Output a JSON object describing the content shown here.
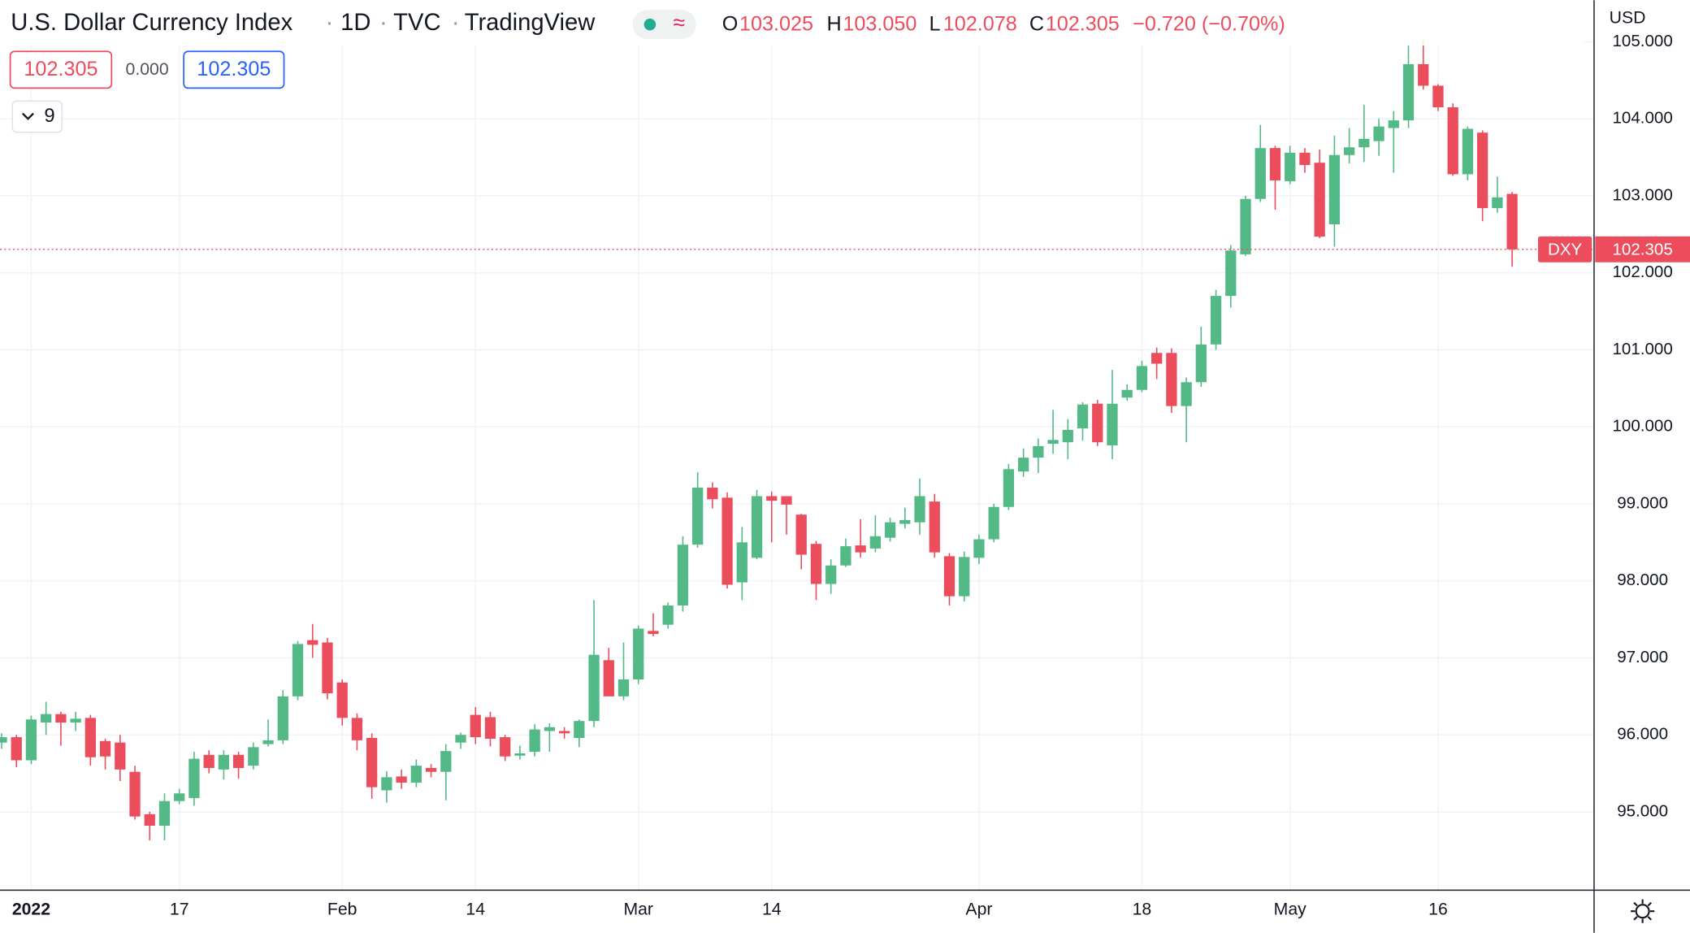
{
  "chart_data": {
    "type": "candlestick",
    "title": "U.S. Dollar Currency Index",
    "interval": "1D",
    "exchange": "TVC",
    "source": "TradingView",
    "symbol": "DXY",
    "currency": "USD",
    "ohlc_prefixes": [
      "O",
      "H",
      "L",
      "C"
    ],
    "last_value_labels": {
      "open": "103.025",
      "high": "103.050",
      "low": "102.078",
      "close": "102.305"
    },
    "change_label": "−0.720 (−0.70%)",
    "spread_label": "0.000",
    "indicator_count": 9,
    "up_color": "#53b987",
    "down_color": "#eb4d5c",
    "grid": true,
    "categories": [
      null,
      null,
      "2022",
      null,
      null,
      null,
      null,
      null,
      null,
      null,
      null,
      null,
      "17",
      null,
      null,
      null,
      null,
      null,
      null,
      null,
      null,
      null,
      null,
      "Feb",
      null,
      null,
      null,
      null,
      null,
      null,
      null,
      null,
      "14",
      null,
      null,
      null,
      null,
      null,
      null,
      null,
      null,
      null,
      null,
      "Mar",
      null,
      null,
      null,
      null,
      null,
      null,
      null,
      null,
      "14",
      null,
      null,
      null,
      null,
      null,
      null,
      null,
      null,
      null,
      null,
      null,
      null,
      null,
      "Apr",
      null,
      null,
      null,
      null,
      null,
      null,
      null,
      null,
      null,
      null,
      "18",
      null,
      null,
      null,
      null,
      null,
      null,
      null,
      null,
      null,
      "May",
      null,
      null,
      null,
      null,
      null,
      null,
      null,
      null,
      null,
      "16",
      null,
      null,
      null,
      null,
      null
    ],
    "open": [
      95.9,
      95.97,
      95.67,
      96.16,
      96.27,
      96.16,
      96.22,
      95.92,
      95.9,
      95.52,
      94.97,
      94.82,
      95.14,
      95.18,
      95.74,
      95.55,
      95.74,
      95.6,
      95.88,
      95.93,
      96.5,
      97.23,
      97.2,
      96.68,
      96.22,
      95.96,
      95.28,
      95.46,
      95.38,
      95.57,
      95.52,
      95.9,
      96.26,
      96.23,
      95.97,
      95.73,
      95.78,
      96.05,
      96.05,
      95.96,
      96.18,
      96.97,
      96.5,
      96.72,
      97.35,
      97.43,
      97.68,
      98.47,
      99.21,
      99.08,
      97.98,
      98.3,
      99.1,
      99.1,
      98.86,
      98.48,
      97.96,
      98.2,
      98.46,
      98.42,
      98.56,
      98.74,
      98.76,
      99.03,
      98.32,
      97.8,
      98.3,
      98.54,
      98.96,
      99.42,
      99.6,
      99.78,
      99.8,
      99.98,
      100.3,
      99.76,
      100.38,
      100.48,
      100.96,
      100.96,
      100.27,
      100.58,
      101.07,
      101.7,
      102.24,
      102.96,
      103.62,
      103.19,
      103.56,
      103.43,
      102.63,
      103.53,
      103.63,
      103.71,
      103.88,
      103.98,
      104.71,
      104.43,
      104.15,
      103.28,
      103.82,
      102.84,
      103.025
    ],
    "high": [
      96.02,
      96.0,
      96.25,
      96.43,
      96.3,
      96.3,
      96.26,
      95.95,
      96.0,
      95.6,
      95.0,
      95.24,
      95.3,
      95.78,
      95.8,
      95.8,
      95.78,
      95.9,
      96.2,
      96.58,
      97.22,
      97.44,
      97.26,
      96.72,
      96.28,
      96.02,
      95.53,
      95.55,
      95.68,
      95.62,
      95.88,
      96.03,
      96.36,
      96.3,
      96.0,
      95.86,
      96.14,
      96.15,
      96.1,
      96.2,
      97.75,
      97.13,
      97.2,
      97.42,
      97.58,
      97.72,
      98.58,
      99.41,
      99.28,
      99.15,
      98.7,
      99.18,
      99.16,
      99.1,
      98.87,
      98.52,
      98.28,
      98.55,
      98.8,
      98.85,
      98.82,
      98.95,
      99.33,
      99.13,
      98.36,
      98.38,
      98.6,
      99.0,
      99.52,
      99.72,
      99.85,
      100.22,
      100.1,
      100.32,
      100.35,
      100.74,
      100.55,
      100.86,
      101.03,
      101.02,
      100.64,
      101.3,
      101.78,
      102.36,
      103.0,
      103.92,
      103.65,
      103.65,
      103.62,
      103.6,
      103.78,
      103.88,
      104.18,
      104.0,
      104.1,
      104.95,
      105.02,
      104.45,
      104.2,
      103.9,
      103.85,
      103.25,
      103.05
    ],
    "low": [
      95.82,
      95.58,
      95.62,
      96.0,
      95.86,
      96.05,
      95.6,
      95.55,
      95.4,
      94.9,
      94.63,
      94.63,
      95.1,
      95.08,
      95.5,
      95.42,
      95.43,
      95.55,
      95.85,
      95.88,
      96.45,
      97.0,
      96.46,
      96.12,
      95.8,
      95.17,
      95.12,
      95.3,
      95.32,
      95.45,
      95.15,
      95.82,
      95.88,
      95.85,
      95.66,
      95.68,
      95.72,
      95.78,
      95.95,
      95.84,
      96.1,
      96.5,
      96.45,
      96.66,
      97.28,
      97.38,
      97.6,
      98.43,
      98.94,
      97.9,
      97.75,
      98.28,
      98.5,
      98.6,
      98.15,
      97.75,
      97.83,
      98.18,
      98.3,
      98.37,
      98.51,
      98.68,
      98.6,
      98.3,
      97.68,
      97.73,
      98.22,
      98.5,
      98.92,
      99.35,
      99.4,
      99.65,
      99.58,
      99.82,
      99.75,
      99.58,
      100.34,
      100.45,
      100.62,
      100.18,
      99.8,
      100.52,
      101.0,
      101.55,
      102.22,
      102.92,
      102.82,
      103.15,
      103.3,
      102.45,
      102.34,
      103.42,
      103.44,
      103.52,
      103.3,
      103.88,
      104.38,
      104.1,
      103.26,
      103.2,
      102.67,
      102.78,
      102.078
    ],
    "close": [
      95.97,
      95.67,
      96.2,
      96.27,
      96.16,
      96.21,
      95.71,
      95.72,
      95.55,
      94.94,
      94.82,
      95.14,
      95.24,
      95.69,
      95.57,
      95.74,
      95.57,
      95.84,
      95.93,
      96.5,
      97.18,
      97.17,
      96.54,
      96.22,
      95.93,
      95.32,
      95.45,
      95.38,
      95.6,
      95.52,
      95.79,
      96.0,
      95.97,
      95.95,
      95.72,
      95.76,
      96.07,
      96.1,
      96.02,
      96.18,
      97.04,
      96.5,
      96.72,
      97.38,
      97.31,
      97.68,
      98.47,
      99.21,
      99.06,
      97.95,
      98.5,
      99.1,
      99.04,
      98.99,
      98.34,
      97.96,
      98.2,
      98.45,
      98.37,
      98.58,
      98.76,
      98.79,
      99.1,
      98.37,
      97.8,
      98.31,
      98.54,
      98.96,
      99.45,
      99.6,
      99.75,
      99.83,
      99.96,
      100.29,
      99.8,
      100.3,
      100.48,
      100.79,
      100.82,
      100.27,
      100.58,
      101.07,
      101.7,
      102.29,
      102.96,
      103.62,
      103.2,
      103.56,
      103.4,
      102.47,
      103.53,
      103.63,
      103.74,
      103.9,
      103.98,
      104.71,
      104.43,
      104.15,
      103.28,
      103.87,
      102.84,
      102.98,
      102.305
    ],
    "ylim": [
      93.99,
      105.54
    ],
    "yticks": [
      {
        "value": 95,
        "label": "95.000"
      },
      {
        "value": 96,
        "label": "96.000"
      },
      {
        "value": 97,
        "label": "97.000"
      },
      {
        "value": 98,
        "label": "98.000"
      },
      {
        "value": 99,
        "label": "99.000"
      },
      {
        "value": 100,
        "label": "100.000"
      },
      {
        "value": 101,
        "label": "101.000"
      },
      {
        "value": 102,
        "label": "102.000"
      },
      {
        "value": 103,
        "label": "103.000"
      },
      {
        "value": 104,
        "label": "104.000"
      },
      {
        "value": 105,
        "label": "105.000"
      }
    ]
  }
}
